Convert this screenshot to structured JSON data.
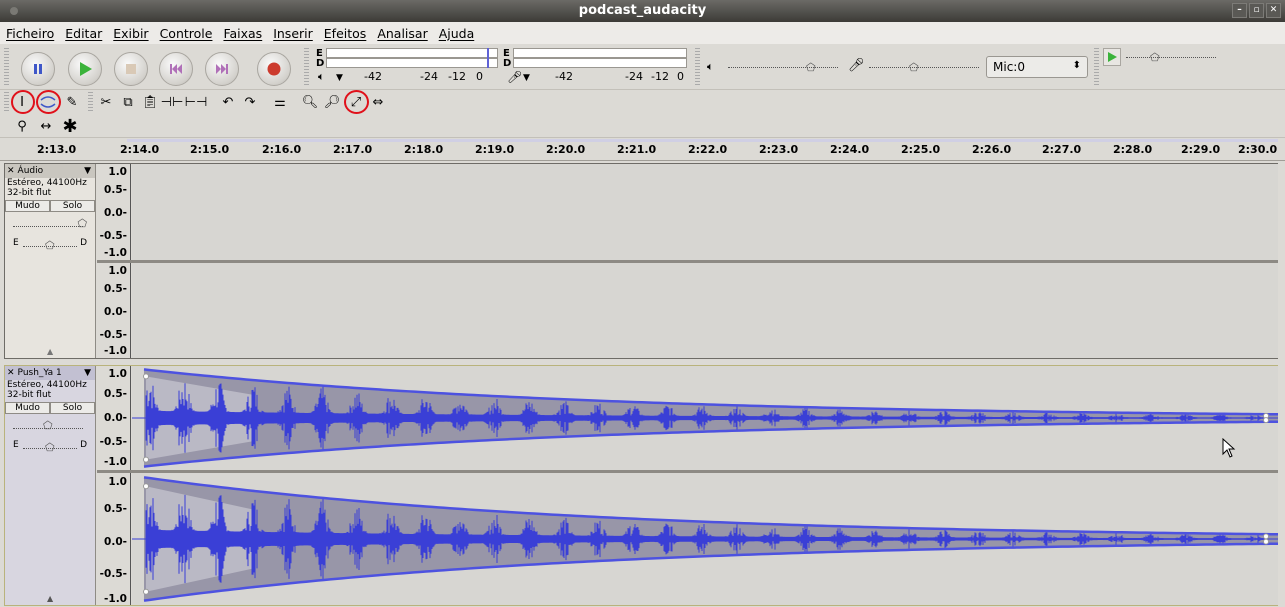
{
  "window": {
    "title": "podcast_audacity"
  },
  "menu": [
    "Ficheiro",
    "Editar",
    "Exibir",
    "Controle",
    "Faixas",
    "Inserir",
    "Efeitos",
    "Analisar",
    "Ajuda"
  ],
  "transport": {
    "buttons": [
      "pause",
      "play",
      "stop",
      "skip-start",
      "skip-end",
      "record"
    ]
  },
  "meters": {
    "play_channels": [
      "E",
      "D"
    ],
    "play_ticks": [
      "-42",
      "-24",
      "-12",
      "0"
    ],
    "rec_channels": [
      "E",
      "D"
    ],
    "rec_ticks": [
      "-42",
      "-24",
      "-12",
      "0"
    ]
  },
  "mixer": {
    "input_device": "Mic:0"
  },
  "ruler": {
    "labels": [
      "2:13.0",
      "2:14.0",
      "2:15.0",
      "2:16.0",
      "2:17.0",
      "2:18.0",
      "2:19.0",
      "2:20.0",
      "2:21.0",
      "2:22.0",
      "2:23.0",
      "2:24.0",
      "2:25.0",
      "2:26.0",
      "2:27.0",
      "2:28.0",
      "2:29.0",
      "2:30.0"
    ]
  },
  "tracks": [
    {
      "name": "Áudio",
      "format": "Estéreo, 44100Hz",
      "bits": "32-bit flut",
      "mute": "Mudo",
      "solo": "Solo",
      "pan_l": "E",
      "pan_r": "D"
    },
    {
      "name": "Push_Ya 1",
      "format": "Estéreo, 44100Hz",
      "bits": "32-bit flut",
      "mute": "Mudo",
      "solo": "Solo",
      "pan_l": "E",
      "pan_r": "D"
    }
  ],
  "scale": [
    "1.0",
    "0.5-",
    "0.0-",
    "-0.5-",
    "-1.0"
  ],
  "colors": {
    "waveform": "#3a3fd6",
    "envelope": "#4d52e0",
    "highlight": "#e0101a"
  }
}
